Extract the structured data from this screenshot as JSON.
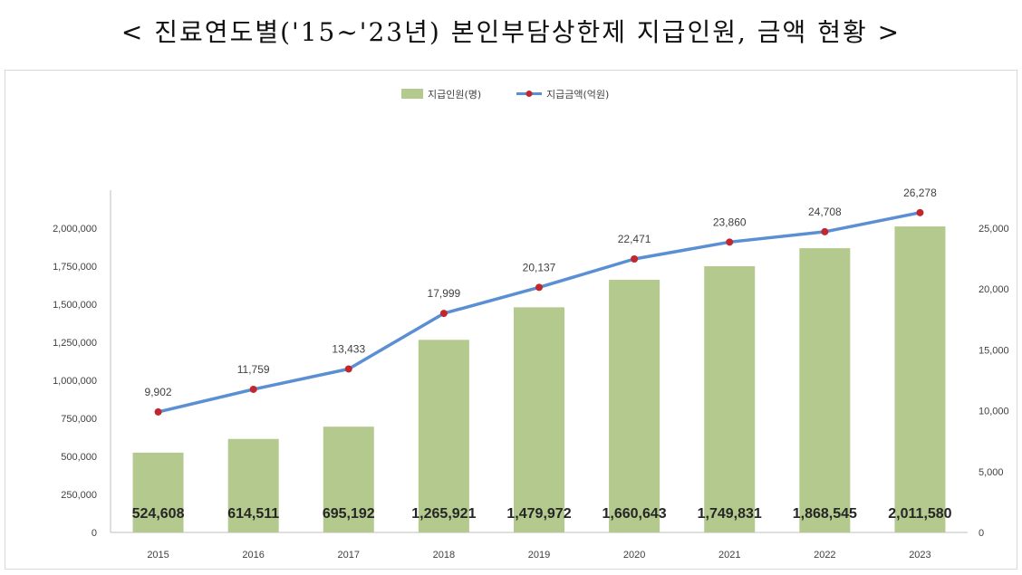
{
  "title": "< 진료연도별('15~'23년) 본인부담상한제 지급인원, 금액 현황 >",
  "colors": {
    "bar": "#b4c98d",
    "line": "#5b8fd4",
    "marker": "#c0282d",
    "axis": "#bfbfbf"
  },
  "chart_data": {
    "type": "bar",
    "categories": [
      "2015",
      "2016",
      "2017",
      "2018",
      "2019",
      "2020",
      "2021",
      "2022",
      "2023"
    ],
    "series": [
      {
        "name": "지급인원(명)",
        "type": "bar",
        "axis": "left",
        "values": [
          524608,
          614511,
          695192,
          1265921,
          1479972,
          1660643,
          1749831,
          1868545,
          2011580
        ],
        "labels": [
          "524,608",
          "614,511",
          "695,192",
          "1,265,921",
          "1,479,972",
          "1,660,643",
          "1,749,831",
          "1,868,545",
          "2,011,580"
        ]
      },
      {
        "name": "지급금액(억원)",
        "type": "line",
        "axis": "right",
        "values": [
          9902,
          11759,
          13433,
          17999,
          20137,
          22471,
          23860,
          24708,
          26278
        ],
        "labels": [
          "9,902",
          "11,759",
          "13,433",
          "17,999",
          "20,137",
          "22,471",
          "23,860",
          "24,708",
          "26,278"
        ]
      }
    ],
    "y_left": {
      "ylim": [
        0,
        2250000
      ],
      "ticks": [
        0,
        250000,
        500000,
        750000,
        1000000,
        1250000,
        1500000,
        1750000,
        2000000
      ],
      "tick_labels": [
        "0",
        "250,000",
        "500,000",
        "750,000",
        "1,000,000",
        "1,250,000",
        "1,500,000",
        "1,750,000",
        "2,000,000"
      ]
    },
    "y_right": {
      "ylim": [
        0,
        28125
      ],
      "ticks": [
        0,
        5000,
        10000,
        15000,
        20000,
        25000
      ],
      "tick_labels": [
        "0",
        "5,000",
        "10,000",
        "15,000",
        "20,000",
        "25,000"
      ]
    },
    "grid": false,
    "legend_position": "top"
  }
}
